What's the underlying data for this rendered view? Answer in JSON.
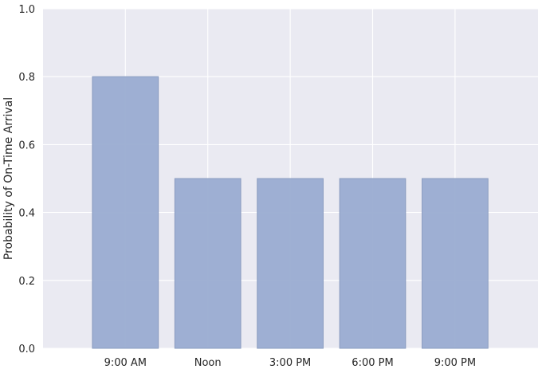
{
  "chart_data": {
    "type": "bar",
    "title": "",
    "xlabel": "",
    "ylabel": "Probability of On-Time Arrival",
    "categories": [
      "9:00 AM",
      "Noon",
      "3:00 PM",
      "6:00 PM",
      "9:00 PM"
    ],
    "values": [
      0.8,
      0.5,
      0.5,
      0.5,
      0.5
    ],
    "ylim": [
      0,
      1.0
    ],
    "yticks": [
      "0.0",
      "0.2",
      "0.4",
      "0.6",
      "0.8",
      "1.0"
    ],
    "grid": true,
    "legend": "none",
    "colors": {
      "plot_background": "#EAEAF2",
      "grid": "#FFFFFF",
      "bar": "#9AACD1",
      "bar_edge": "#8A9CC0"
    }
  }
}
